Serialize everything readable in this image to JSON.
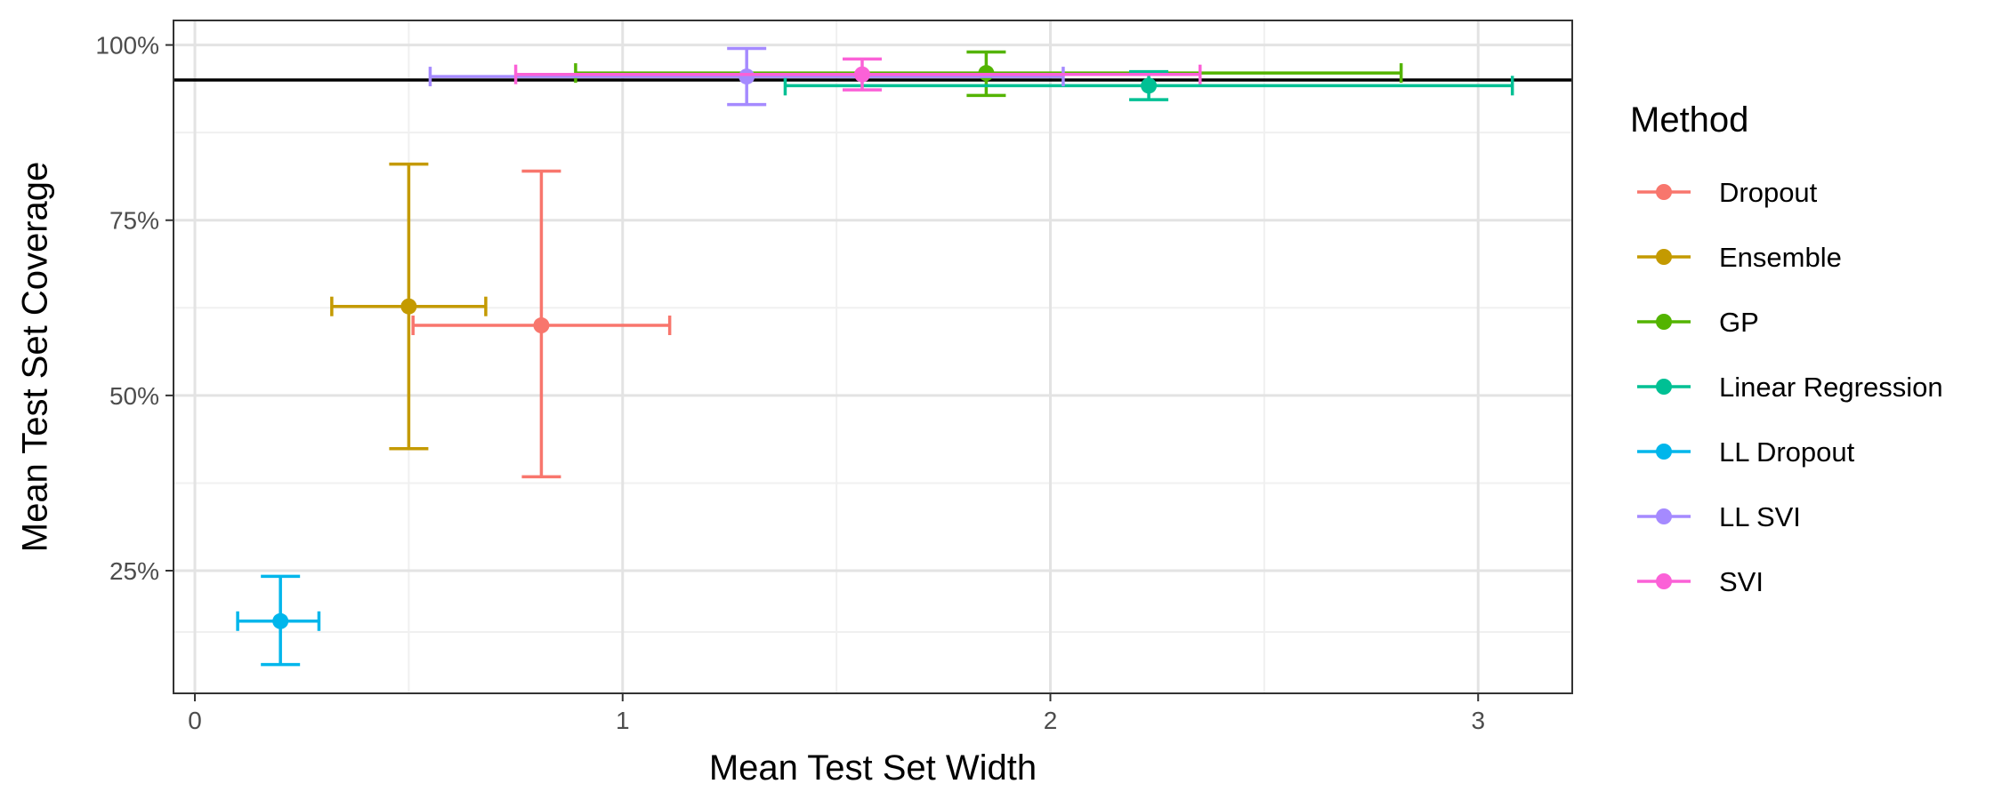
{
  "chart_data": {
    "type": "scatter",
    "title": "",
    "xlabel": "Mean Test Set Width",
    "ylabel": "Mean Test Set Coverage",
    "xlim": [
      -0.05,
      3.22
    ],
    "ylim": [
      0.075,
      1.035
    ],
    "x_ticks": [
      0,
      1,
      2,
      3
    ],
    "x_tick_labels": [
      "0",
      "1",
      "2",
      "3"
    ],
    "y_ticks": [
      0.25,
      0.5,
      0.75,
      1.0
    ],
    "y_tick_labels": [
      "25%",
      "50%",
      "75%",
      "100%"
    ],
    "grid": true,
    "reference_line_y": 0.95,
    "legend": {
      "title": "Method",
      "placement": "right"
    },
    "series": [
      {
        "name": "Dropout",
        "color": "#F8766D",
        "x": 0.81,
        "y": 0.6,
        "x_err": [
          0.51,
          1.11
        ],
        "y_err": [
          0.384,
          0.82
        ]
      },
      {
        "name": "Ensemble",
        "color": "#C49A00",
        "x": 0.5,
        "y": 0.627,
        "x_err": [
          0.32,
          0.68
        ],
        "y_err": [
          0.424,
          0.83
        ]
      },
      {
        "name": "GP",
        "color": "#53B400",
        "x": 1.85,
        "y": 0.96,
        "x_err": [
          0.89,
          2.82
        ],
        "y_err": [
          0.928,
          0.99
        ]
      },
      {
        "name": "Linear Regression",
        "color": "#00C094",
        "x": 2.23,
        "y": 0.942,
        "x_err": [
          1.38,
          3.08
        ],
        "y_err": [
          0.922,
          0.962
        ]
      },
      {
        "name": "LL Dropout",
        "color": "#00B6EB",
        "x": 0.2,
        "y": 0.178,
        "x_err": [
          0.1,
          0.29
        ],
        "y_err": [
          0.116,
          0.242
        ]
      },
      {
        "name": "LL SVI",
        "color": "#A58AFF",
        "x": 1.29,
        "y": 0.955,
        "x_err": [
          0.55,
          2.03
        ],
        "y_err": [
          0.915,
          0.995
        ]
      },
      {
        "name": "SVI",
        "color": "#FB61D7",
        "x": 1.56,
        "y": 0.958,
        "x_err": [
          0.75,
          2.35
        ],
        "y_err": [
          0.936,
          0.98
        ]
      }
    ]
  }
}
